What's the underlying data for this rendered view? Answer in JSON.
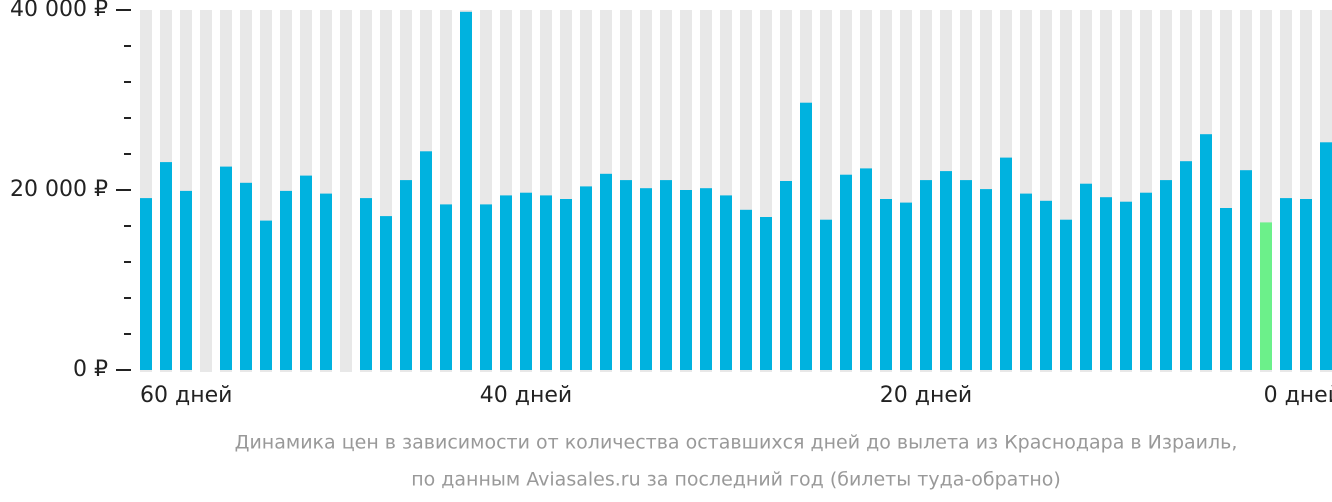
{
  "chart_data": {
    "type": "bar",
    "categories": [
      "60 дней",
      null,
      null,
      null,
      null,
      null,
      null,
      null,
      null,
      null,
      null,
      null,
      null,
      null,
      null,
      null,
      null,
      null,
      null,
      "40 дней",
      null,
      null,
      null,
      null,
      null,
      null,
      null,
      null,
      null,
      null,
      null,
      null,
      null,
      null,
      null,
      null,
      null,
      null,
      null,
      "20 дней",
      null,
      null,
      null,
      null,
      null,
      null,
      null,
      null,
      null,
      null,
      null,
      null,
      null,
      null,
      null,
      null,
      null,
      null,
      null,
      "0 дней"
    ],
    "values": [
      19100,
      23100,
      19900,
      null,
      22600,
      20800,
      16600,
      19900,
      21600,
      19600,
      null,
      19100,
      17100,
      21100,
      24300,
      18400,
      39800,
      18400,
      19400,
      19700,
      19400,
      19000,
      20400,
      21800,
      21100,
      20200,
      21100,
      20000,
      20200,
      19400,
      17800,
      17000,
      21000,
      29700,
      16700,
      21700,
      22400,
      19000,
      18600,
      21100,
      22100,
      21100,
      20100,
      23600,
      19600,
      18800,
      16700,
      20700,
      19200,
      18700,
      19700,
      21100,
      23200,
      26200,
      18000,
      22200,
      16400,
      19100,
      19000,
      25300
    ],
    "color": "#00b2df",
    "highlight_index": 56,
    "highlight_color": "#6cf08a",
    "background_color": "#e8e8e8",
    "ylim": [
      0,
      40000
    ],
    "yticks": [
      {
        "value": 0,
        "label": "0 ₽"
      },
      {
        "value": 20000,
        "label": "20 000 ₽"
      },
      {
        "value": 40000,
        "label": "40 000 ₽"
      }
    ],
    "minor_yticks": [
      4000,
      8000,
      12000,
      16000,
      24000,
      28000,
      32000,
      36000
    ],
    "caption": [
      "Динамика цен в зависимости от количества оставшихся дней до вылета из Краснодара в Израиль,",
      "по данным Aviasales.ru за последний год (билеты туда-обратно)"
    ]
  }
}
